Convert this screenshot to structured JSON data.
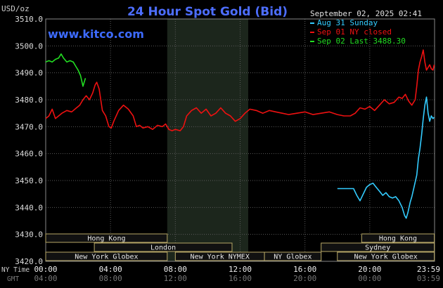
{
  "chart_data": {
    "type": "line",
    "title": "24 Hour Spot Gold (Bid)",
    "website": "www.kitco.com",
    "ylabel": "USD/oz",
    "timestamp": "September 02, 2025 02:41",
    "ylim": [
      3420,
      3510
    ],
    "y_ticks": [
      "3510.0",
      "3500.0",
      "3490.0",
      "3480.0",
      "3470.0",
      "3460.0",
      "3450.0",
      "3440.0",
      "3430.0",
      "3420.0"
    ],
    "x_axis": {
      "row1_label": "NY Time",
      "row2_label": "GMT",
      "ny_ticks": [
        "00:00",
        "04:00",
        "08:00",
        "12:00",
        "16:00",
        "20:00",
        "23:59"
      ],
      "gmt_ticks": [
        "04:00",
        "08:00",
        "12:00",
        "16:00",
        "20:00",
        "00:00",
        "03:59"
      ]
    },
    "shaded_period": [
      "07:30",
      "12:30"
    ],
    "series": [
      {
        "name": "Aug 31 Sunday",
        "color": "#33ccff",
        "points": [
          [
            18.0,
            3447.0
          ],
          [
            18.3,
            3447.0
          ],
          [
            18.6,
            3447.0
          ],
          [
            18.8,
            3447.0
          ],
          [
            19.0,
            3447.0
          ],
          [
            19.2,
            3444.5
          ],
          [
            19.4,
            3442.5
          ],
          [
            19.6,
            3445.0
          ],
          [
            19.8,
            3447.5
          ],
          [
            20.0,
            3448.5
          ],
          [
            20.2,
            3449.0
          ],
          [
            20.4,
            3447.5
          ],
          [
            20.6,
            3446.0
          ],
          [
            20.8,
            3444.5
          ],
          [
            21.0,
            3445.5
          ],
          [
            21.2,
            3444.0
          ],
          [
            21.4,
            3443.5
          ],
          [
            21.6,
            3444.0
          ],
          [
            21.8,
            3442.5
          ],
          [
            22.0,
            3440.0
          ],
          [
            22.15,
            3437.0
          ],
          [
            22.25,
            3436.0
          ],
          [
            22.35,
            3438.0
          ],
          [
            22.5,
            3442.0
          ],
          [
            22.6,
            3444.0
          ],
          [
            22.75,
            3448.0
          ],
          [
            22.9,
            3452.0
          ],
          [
            23.0,
            3458.0
          ],
          [
            23.1,
            3462.0
          ],
          [
            23.2,
            3467.0
          ],
          [
            23.3,
            3473.0
          ],
          [
            23.4,
            3478.0
          ],
          [
            23.5,
            3481.0
          ],
          [
            23.6,
            3475.0
          ],
          [
            23.7,
            3472.0
          ],
          [
            23.8,
            3474.0
          ],
          [
            23.9,
            3473.0
          ],
          [
            23.98,
            3473.5
          ]
        ]
      },
      {
        "name": "Sep 01 NY closed",
        "color": "#ee1111",
        "points": [
          [
            0.0,
            3473.0
          ],
          [
            0.2,
            3474.0
          ],
          [
            0.4,
            3476.5
          ],
          [
            0.6,
            3473.0
          ],
          [
            0.8,
            3474.0
          ],
          [
            1.0,
            3475.0
          ],
          [
            1.3,
            3476.0
          ],
          [
            1.6,
            3475.5
          ],
          [
            1.9,
            3477.0
          ],
          [
            2.1,
            3478.0
          ],
          [
            2.3,
            3480.0
          ],
          [
            2.5,
            3481.5
          ],
          [
            2.7,
            3480.0
          ],
          [
            2.9,
            3482.5
          ],
          [
            3.05,
            3485.5
          ],
          [
            3.15,
            3486.5
          ],
          [
            3.3,
            3484.0
          ],
          [
            3.5,
            3476.0
          ],
          [
            3.7,
            3474.0
          ],
          [
            3.9,
            3470.0
          ],
          [
            4.05,
            3469.5
          ],
          [
            4.2,
            3472.0
          ],
          [
            4.5,
            3476.0
          ],
          [
            4.8,
            3478.0
          ],
          [
            5.1,
            3476.5
          ],
          [
            5.4,
            3474.0
          ],
          [
            5.6,
            3470.0
          ],
          [
            5.8,
            3470.5
          ],
          [
            6.0,
            3469.5
          ],
          [
            6.3,
            3470.0
          ],
          [
            6.6,
            3469.0
          ],
          [
            6.9,
            3470.5
          ],
          [
            7.2,
            3470.0
          ],
          [
            7.4,
            3471.0
          ],
          [
            7.6,
            3469.0
          ],
          [
            7.8,
            3468.5
          ],
          [
            8.0,
            3469.0
          ],
          [
            8.3,
            3468.5
          ],
          [
            8.5,
            3470.0
          ],
          [
            8.7,
            3474.0
          ],
          [
            9.0,
            3476.0
          ],
          [
            9.3,
            3477.0
          ],
          [
            9.6,
            3475.0
          ],
          [
            9.9,
            3476.5
          ],
          [
            10.2,
            3474.0
          ],
          [
            10.5,
            3475.0
          ],
          [
            10.8,
            3477.0
          ],
          [
            11.1,
            3475.0
          ],
          [
            11.4,
            3474.0
          ],
          [
            11.7,
            3472.0
          ],
          [
            12.0,
            3473.0
          ],
          [
            12.3,
            3475.0
          ],
          [
            12.6,
            3476.5
          ],
          [
            13.0,
            3476.0
          ],
          [
            13.4,
            3475.0
          ],
          [
            13.8,
            3476.0
          ],
          [
            14.2,
            3475.5
          ],
          [
            14.6,
            3475.0
          ],
          [
            15.0,
            3474.5
          ],
          [
            15.5,
            3475.0
          ],
          [
            16.0,
            3475.5
          ],
          [
            16.5,
            3474.5
          ],
          [
            17.0,
            3475.0
          ],
          [
            17.5,
            3475.5
          ],
          [
            18.0,
            3474.5
          ],
          [
            18.4,
            3474.0
          ],
          [
            18.8,
            3474.0
          ],
          [
            19.1,
            3475.0
          ],
          [
            19.4,
            3477.0
          ],
          [
            19.7,
            3476.5
          ],
          [
            20.0,
            3477.5
          ],
          [
            20.3,
            3476.0
          ],
          [
            20.6,
            3478.0
          ],
          [
            20.9,
            3480.0
          ],
          [
            21.2,
            3478.5
          ],
          [
            21.5,
            3479.0
          ],
          [
            21.8,
            3481.0
          ],
          [
            22.0,
            3480.5
          ],
          [
            22.2,
            3482.0
          ],
          [
            22.4,
            3479.5
          ],
          [
            22.6,
            3478.0
          ],
          [
            22.8,
            3480.0
          ],
          [
            22.9,
            3485.0
          ],
          [
            23.0,
            3491.0
          ],
          [
            23.1,
            3494.0
          ],
          [
            23.2,
            3496.0
          ],
          [
            23.3,
            3498.5
          ],
          [
            23.4,
            3494.0
          ],
          [
            23.5,
            3491.0
          ],
          [
            23.6,
            3492.0
          ],
          [
            23.7,
            3493.0
          ],
          [
            23.8,
            3491.5
          ],
          [
            23.9,
            3491.0
          ],
          [
            23.98,
            3493.0
          ]
        ]
      },
      {
        "name": "Sep 02 Last 3488.30",
        "color": "#22dd22",
        "points": [
          [
            0.0,
            3494.0
          ],
          [
            0.2,
            3494.5
          ],
          [
            0.4,
            3494.0
          ],
          [
            0.6,
            3495.0
          ],
          [
            0.8,
            3495.5
          ],
          [
            0.95,
            3497.0
          ],
          [
            1.1,
            3495.5
          ],
          [
            1.3,
            3494.0
          ],
          [
            1.5,
            3494.5
          ],
          [
            1.7,
            3494.0
          ],
          [
            1.85,
            3492.5
          ],
          [
            2.0,
            3491.0
          ],
          [
            2.15,
            3489.0
          ],
          [
            2.3,
            3485.0
          ],
          [
            2.45,
            3488.0
          ]
        ]
      }
    ]
  },
  "sessions": {
    "row1": [
      {
        "label": "Hong Kong",
        "start": "00:00",
        "end": "07:30"
      },
      {
        "label": "Hong Kong",
        "start": "19:30",
        "end": "23:59"
      }
    ],
    "row2": [
      {
        "label": "London",
        "start": "03:00",
        "end": "11:30"
      },
      {
        "label": "Sydney",
        "start": "17:00",
        "end": "23:59"
      }
    ],
    "row3": [
      {
        "label": "New York Globex",
        "start": "00:00",
        "end": "07:30"
      },
      {
        "label": "New York NYMEX",
        "start": "08:00",
        "end": "13:30"
      },
      {
        "label": "NY Globex",
        "start": "13:30",
        "end": "17:00"
      },
      {
        "label": "New York Globex",
        "start": "18:00",
        "end": "23:59"
      }
    ]
  }
}
